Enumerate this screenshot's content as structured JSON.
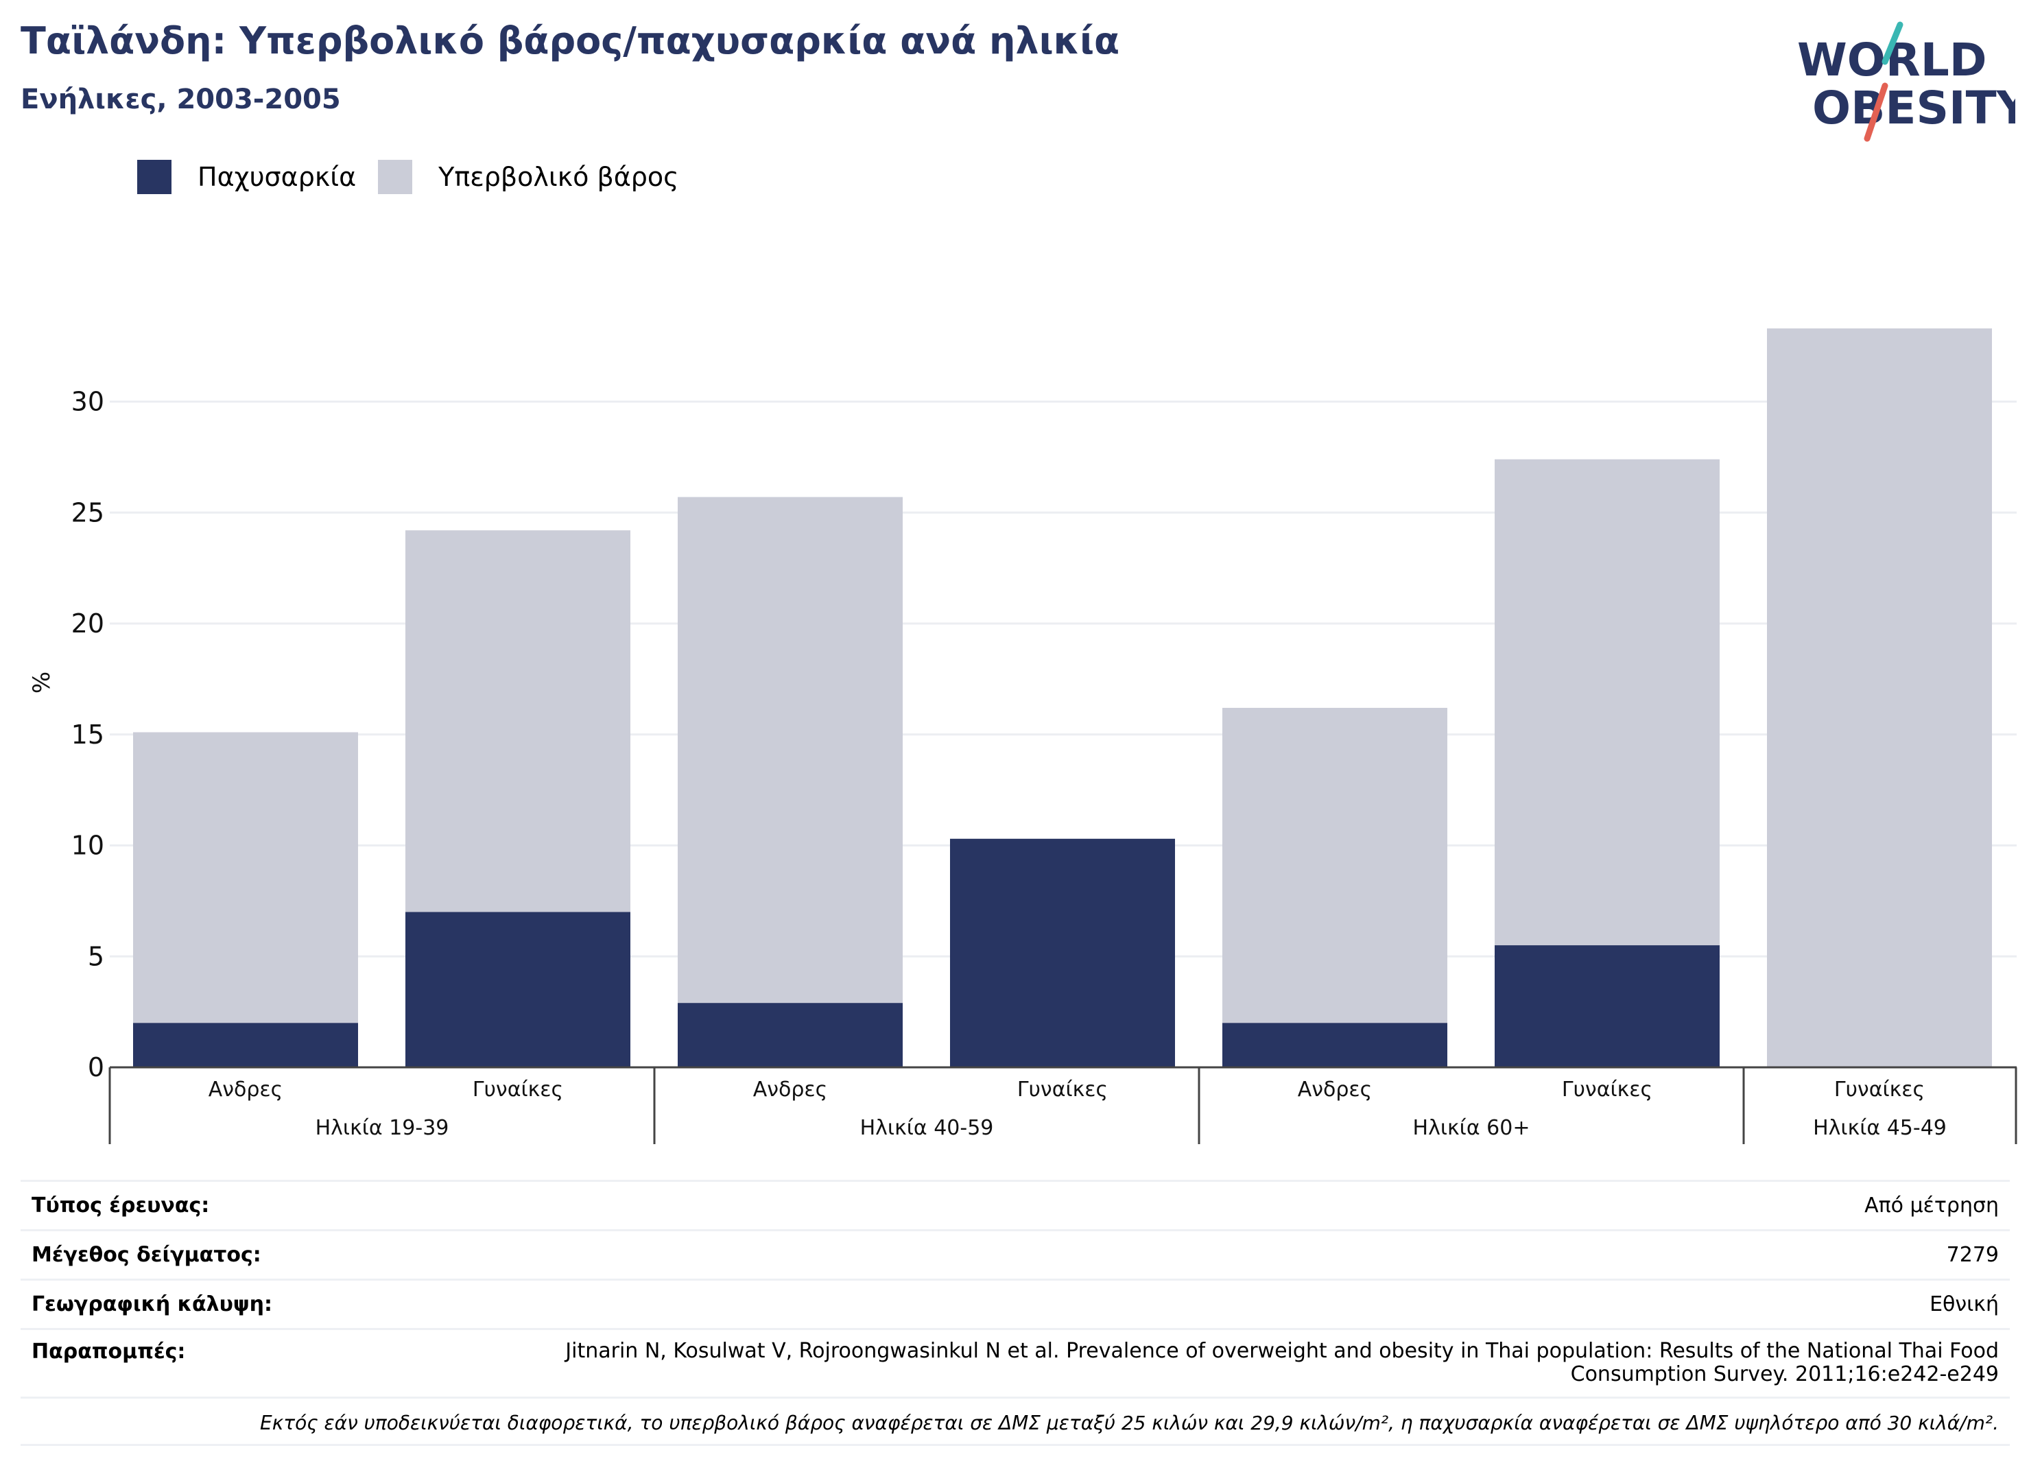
{
  "header": {
    "title": "Ταϊλάνδη: Υπερβολικό βάρος/παχυσαρκία ανά ηλικία",
    "subtitle": "Ενήλικες, 2003-2005"
  },
  "logo": {
    "line1": "WORLD",
    "line2": "OBESITY"
  },
  "colors": {
    "obesity": "#283562",
    "overweight": "#cbcdd8",
    "accent_teal": "#3ab7b3",
    "accent_red": "#e36153"
  },
  "chart_data": {
    "type": "bar",
    "stacked": true,
    "ylabel": "%",
    "ylim": [
      0,
      33.5
    ],
    "yticks": [
      0,
      5,
      10,
      15,
      20,
      25,
      30
    ],
    "grid": true,
    "legend_position": "top-left",
    "groups": [
      {
        "label": "Ηλικία 19-39",
        "categories": [
          "Ανδρες",
          "Γυναίκες"
        ]
      },
      {
        "label": "Ηλικία 40-59",
        "categories": [
          "Ανδρες",
          "Γυναίκες"
        ]
      },
      {
        "label": "Ηλικία 60+",
        "categories": [
          "Ανδρες",
          "Γυναίκες"
        ]
      },
      {
        "label": "Ηλικία 45-49",
        "categories": [
          "Γυναίκες"
        ]
      }
    ],
    "series": [
      {
        "name": "Παχυσαρκία",
        "color": "#283562",
        "values": [
          2.0,
          7.0,
          2.9,
          10.3,
          2.0,
          5.5,
          0
        ]
      },
      {
        "name": "Υπερβολικό βάρος",
        "color": "#cbcdd8",
        "values": [
          13.1,
          17.2,
          22.8,
          0,
          14.2,
          21.9,
          33.3
        ]
      }
    ]
  },
  "info": {
    "rows": [
      {
        "key": "Τύπος έρευνας:",
        "value": "Από μέτρηση"
      },
      {
        "key": "Μέγεθος δείγματος:",
        "value": "7279"
      },
      {
        "key": "Γεωγραφική κάλυψη:",
        "value": "Εθνική"
      },
      {
        "key": "Παραπομπές:",
        "value": "Jitnarin N, Kosulwat V, Rojroongwasinkul N et al. Prevalence of overweight and obesity in Thai population: Results of the National Thai Food Consumption Survey. 2011;16:e242-e249"
      }
    ],
    "note": "Εκτός εάν υποδεικνύεται διαφορετικά, το υπερβολικό βάρος αναφέρεται σε ΔΜΣ μεταξύ 25 κιλών και 29,9 κιλών/m², η παχυσαρκία αναφέρεται σε ΔΜΣ υψηλότερο από 30 κιλά/m²."
  }
}
